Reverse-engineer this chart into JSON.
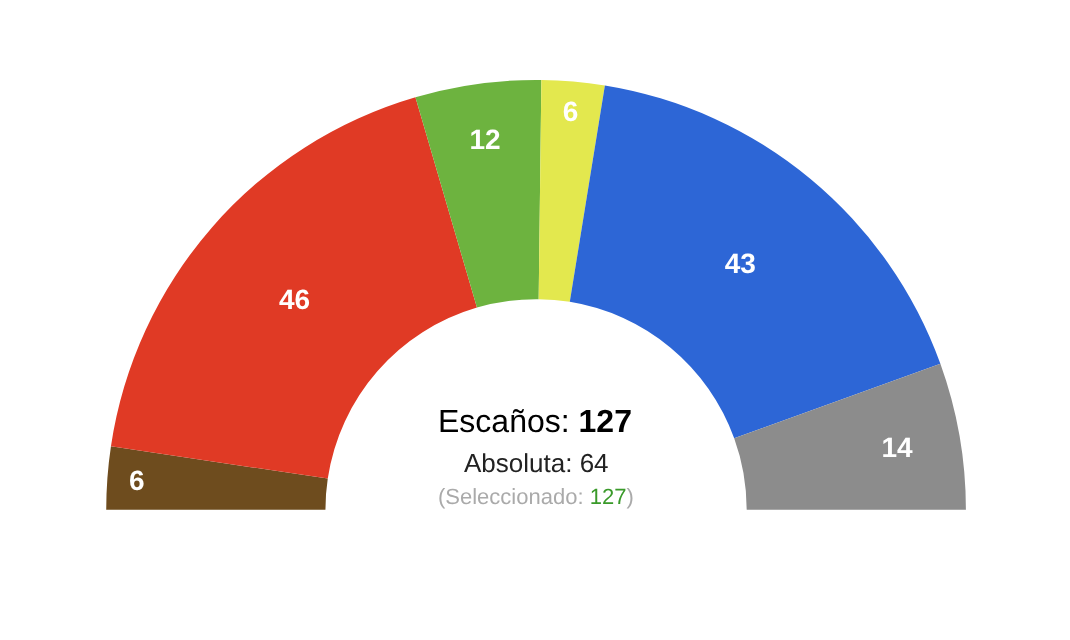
{
  "chart_data": {
    "type": "donut",
    "categories": [
      null,
      null,
      null,
      null,
      null,
      null
    ],
    "values": [
      6,
      46,
      12,
      6,
      43,
      14
    ],
    "colors": [
      "#6e4c1e",
      "#e03a25",
      "#6db33f",
      "#e3e84e",
      "#2d66d6",
      "#8c8c8c"
    ],
    "data_labels": true,
    "annotations": [
      "Escaños: 127",
      "Absoluta: 64",
      "(Seleccionado: 127)"
    ]
  }
}
